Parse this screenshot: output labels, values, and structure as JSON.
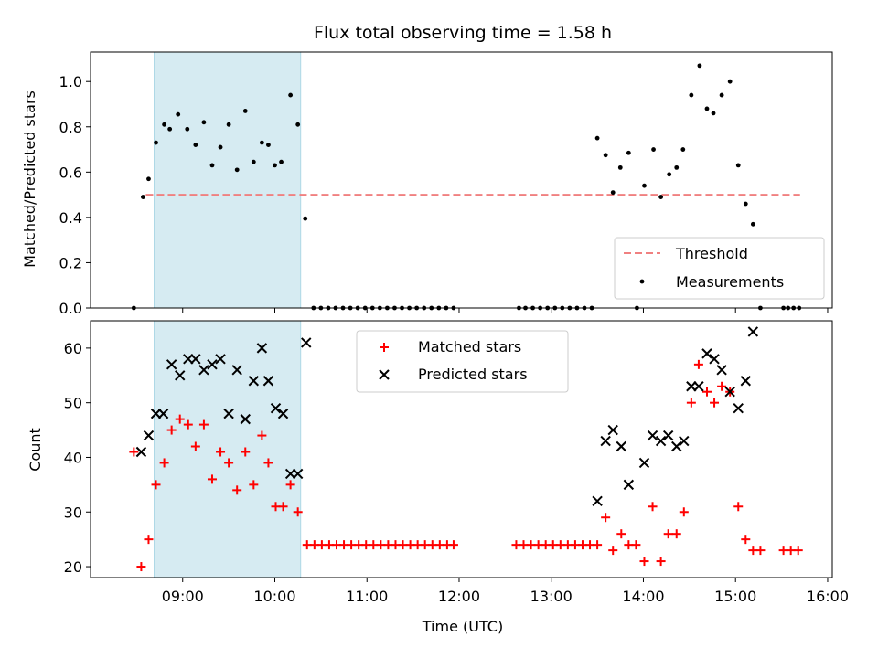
{
  "chart_data": {
    "type": "scatter",
    "title": "Flux total observing time = 1.58 h",
    "x_axis": {
      "label": "Time (UTC)",
      "range_hours": [
        8.0,
        16.05
      ],
      "ticks": [
        {
          "value": 9,
          "label": "09:00"
        },
        {
          "value": 10,
          "label": "10:00"
        },
        {
          "value": 11,
          "label": "11:00"
        },
        {
          "value": 12,
          "label": "12:00"
        },
        {
          "value": 13,
          "label": "13:00"
        },
        {
          "value": 14,
          "label": "14:00"
        },
        {
          "value": 15,
          "label": "15:00"
        },
        {
          "value": 16,
          "label": "16:00"
        }
      ]
    },
    "shaded_interval_hours": [
      8.69,
      10.28
    ],
    "shade_color": "#add8e6",
    "top_panel": {
      "ylabel": "Matched/Predicted stars",
      "ylim": [
        0,
        1.13
      ],
      "yticks": [
        {
          "value": 0.0,
          "label": "0.0"
        },
        {
          "value": 0.2,
          "label": "0.2"
        },
        {
          "value": 0.4,
          "label": "0.4"
        },
        {
          "value": 0.6,
          "label": "0.6"
        },
        {
          "value": 0.8,
          "label": "0.8"
        },
        {
          "value": 1.0,
          "label": "1.0"
        }
      ],
      "threshold": {
        "name": "Threshold",
        "y": 0.5,
        "x_range": [
          8.6,
          15.7
        ],
        "color": "#f08080"
      },
      "measurements": {
        "name": "Measurements",
        "color": "#000000",
        "points": [
          [
            8.47,
            0.0
          ],
          [
            8.57,
            0.49
          ],
          [
            8.63,
            0.57
          ],
          [
            8.71,
            0.73
          ],
          [
            8.8,
            0.81
          ],
          [
            8.86,
            0.79
          ],
          [
            8.95,
            0.855
          ],
          [
            9.05,
            0.79
          ],
          [
            9.14,
            0.72
          ],
          [
            9.23,
            0.82
          ],
          [
            9.32,
            0.63
          ],
          [
            9.41,
            0.71
          ],
          [
            9.5,
            0.81
          ],
          [
            9.59,
            0.61
          ],
          [
            9.68,
            0.87
          ],
          [
            9.77,
            0.645
          ],
          [
            9.86,
            0.73
          ],
          [
            9.93,
            0.72
          ],
          [
            10.0,
            0.63
          ],
          [
            10.07,
            0.645
          ],
          [
            10.17,
            0.94
          ],
          [
            10.25,
            0.81
          ],
          [
            10.33,
            0.395
          ],
          [
            10.42,
            0.0
          ],
          [
            10.5,
            0.0
          ],
          [
            10.58,
            0.0
          ],
          [
            10.66,
            0.0
          ],
          [
            10.74,
            0.0
          ],
          [
            10.82,
            0.0
          ],
          [
            10.9,
            0.0
          ],
          [
            10.98,
            0.0
          ],
          [
            11.06,
            0.0
          ],
          [
            11.14,
            0.0
          ],
          [
            11.22,
            0.0
          ],
          [
            11.3,
            0.0
          ],
          [
            11.38,
            0.0
          ],
          [
            11.46,
            0.0
          ],
          [
            11.54,
            0.0
          ],
          [
            11.62,
            0.0
          ],
          [
            11.7,
            0.0
          ],
          [
            11.78,
            0.0
          ],
          [
            11.86,
            0.0
          ],
          [
            11.94,
            0.0
          ],
          [
            12.65,
            0.0
          ],
          [
            12.72,
            0.0
          ],
          [
            12.8,
            0.0
          ],
          [
            12.88,
            0.0
          ],
          [
            12.96,
            0.0
          ],
          [
            13.04,
            0.0
          ],
          [
            13.12,
            0.0
          ],
          [
            13.2,
            0.0
          ],
          [
            13.28,
            0.0
          ],
          [
            13.36,
            0.0
          ],
          [
            13.44,
            0.0
          ],
          [
            13.5,
            0.75
          ],
          [
            13.59,
            0.675
          ],
          [
            13.67,
            0.51
          ],
          [
            13.75,
            0.62
          ],
          [
            13.84,
            0.685
          ],
          [
            13.93,
            0.0
          ],
          [
            14.01,
            0.54
          ],
          [
            14.11,
            0.7
          ],
          [
            14.19,
            0.49
          ],
          [
            14.28,
            0.59
          ],
          [
            14.36,
            0.62
          ],
          [
            14.43,
            0.7
          ],
          [
            14.52,
            0.94
          ],
          [
            14.61,
            1.07
          ],
          [
            14.69,
            0.88
          ],
          [
            14.76,
            0.86
          ],
          [
            14.85,
            0.94
          ],
          [
            14.94,
            1.0
          ],
          [
            15.03,
            0.63
          ],
          [
            15.11,
            0.46
          ],
          [
            15.19,
            0.37
          ],
          [
            15.27,
            0.0
          ],
          [
            15.52,
            0.0
          ],
          [
            15.57,
            0.0
          ],
          [
            15.63,
            0.0
          ],
          [
            15.69,
            0.0
          ]
        ]
      },
      "legend": {
        "position": "lower right"
      }
    },
    "bottom_panel": {
      "ylabel": "Count",
      "ylim": [
        18,
        65
      ],
      "yticks": [
        {
          "value": 20,
          "label": "20"
        },
        {
          "value": 30,
          "label": "30"
        },
        {
          "value": 40,
          "label": "40"
        },
        {
          "value": 50,
          "label": "50"
        },
        {
          "value": 60,
          "label": "60"
        }
      ],
      "matched": {
        "name": "Matched stars",
        "color": "#ff0000",
        "points": [
          [
            8.47,
            41
          ],
          [
            8.55,
            20
          ],
          [
            8.63,
            25
          ],
          [
            8.71,
            35
          ],
          [
            8.8,
            39
          ],
          [
            8.88,
            45
          ],
          [
            8.97,
            47
          ],
          [
            9.06,
            46
          ],
          [
            9.14,
            42
          ],
          [
            9.23,
            46
          ],
          [
            9.32,
            36
          ],
          [
            9.41,
            41
          ],
          [
            9.5,
            39
          ],
          [
            9.59,
            34
          ],
          [
            9.68,
            41
          ],
          [
            9.77,
            35
          ],
          [
            9.86,
            44
          ],
          [
            9.93,
            39
          ],
          [
            10.01,
            31
          ],
          [
            10.09,
            31
          ],
          [
            10.17,
            35
          ],
          [
            10.25,
            30
          ],
          [
            10.35,
            24
          ],
          [
            10.43,
            24
          ],
          [
            10.51,
            24
          ],
          [
            10.59,
            24
          ],
          [
            10.67,
            24
          ],
          [
            10.75,
            24
          ],
          [
            10.83,
            24
          ],
          [
            10.91,
            24
          ],
          [
            10.99,
            24
          ],
          [
            11.07,
            24
          ],
          [
            11.15,
            24
          ],
          [
            11.23,
            24
          ],
          [
            11.31,
            24
          ],
          [
            11.39,
            24
          ],
          [
            11.47,
            24
          ],
          [
            11.55,
            24
          ],
          [
            11.63,
            24
          ],
          [
            11.71,
            24
          ],
          [
            11.79,
            24
          ],
          [
            11.87,
            24
          ],
          [
            11.94,
            24
          ],
          [
            12.62,
            24
          ],
          [
            12.7,
            24
          ],
          [
            12.78,
            24
          ],
          [
            12.86,
            24
          ],
          [
            12.94,
            24
          ],
          [
            13.02,
            24
          ],
          [
            13.1,
            24
          ],
          [
            13.18,
            24
          ],
          [
            13.26,
            24
          ],
          [
            13.34,
            24
          ],
          [
            13.42,
            24
          ],
          [
            13.5,
            24
          ],
          [
            13.59,
            29
          ],
          [
            13.67,
            23
          ],
          [
            13.76,
            26
          ],
          [
            13.84,
            24
          ],
          [
            13.92,
            24
          ],
          [
            14.01,
            21
          ],
          [
            14.1,
            31
          ],
          [
            14.19,
            21
          ],
          [
            14.27,
            26
          ],
          [
            14.36,
            26
          ],
          [
            14.44,
            30
          ],
          [
            14.52,
            50
          ],
          [
            14.6,
            57
          ],
          [
            14.69,
            52
          ],
          [
            14.77,
            50
          ],
          [
            14.85,
            53
          ],
          [
            14.94,
            52
          ],
          [
            15.03,
            31
          ],
          [
            15.11,
            25
          ],
          [
            15.19,
            23
          ],
          [
            15.27,
            23
          ],
          [
            15.52,
            23
          ],
          [
            15.6,
            23
          ],
          [
            15.68,
            23
          ]
        ]
      },
      "predicted": {
        "name": "Predicted stars",
        "color": "#000000",
        "points": [
          [
            8.55,
            41
          ],
          [
            8.63,
            44
          ],
          [
            8.71,
            48
          ],
          [
            8.79,
            48
          ],
          [
            8.88,
            57
          ],
          [
            8.97,
            55
          ],
          [
            9.06,
            58
          ],
          [
            9.14,
            58
          ],
          [
            9.23,
            56
          ],
          [
            9.32,
            57
          ],
          [
            9.41,
            58
          ],
          [
            9.5,
            48
          ],
          [
            9.59,
            56
          ],
          [
            9.68,
            47
          ],
          [
            9.77,
            54
          ],
          [
            9.86,
            60
          ],
          [
            9.93,
            54
          ],
          [
            10.01,
            49
          ],
          [
            10.09,
            48
          ],
          [
            10.17,
            37
          ],
          [
            10.25,
            37
          ],
          [
            10.34,
            61
          ],
          [
            13.5,
            32
          ],
          [
            13.59,
            43
          ],
          [
            13.67,
            45
          ],
          [
            13.76,
            42
          ],
          [
            13.84,
            35
          ],
          [
            14.01,
            39
          ],
          [
            14.1,
            44
          ],
          [
            14.19,
            43
          ],
          [
            14.27,
            44
          ],
          [
            14.36,
            42
          ],
          [
            14.44,
            43
          ],
          [
            14.52,
            53
          ],
          [
            14.6,
            53
          ],
          [
            14.69,
            59
          ],
          [
            14.77,
            58
          ],
          [
            14.85,
            56
          ],
          [
            14.94,
            52
          ],
          [
            15.03,
            49
          ],
          [
            15.11,
            54
          ],
          [
            15.19,
            63
          ]
        ]
      },
      "legend": {
        "position": "upper center"
      }
    }
  }
}
